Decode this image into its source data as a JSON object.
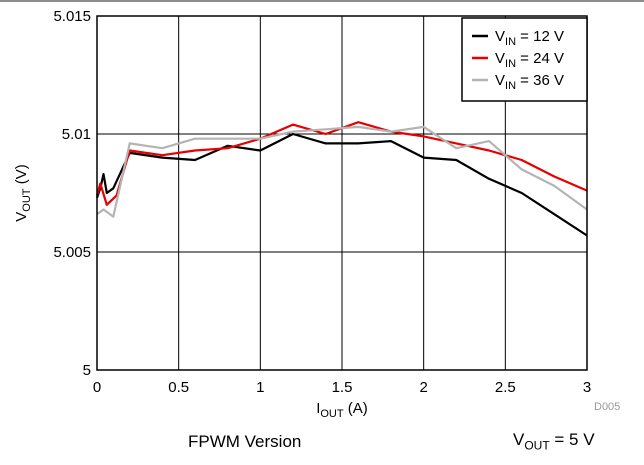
{
  "chart_data": {
    "type": "line",
    "xlabel": {
      "main": "I",
      "sub": "OUT",
      "tail": " (A)"
    },
    "ylabel": {
      "main": "V",
      "sub": "OUT",
      "tail": " (V)"
    },
    "xlim": [
      0,
      3
    ],
    "ylim": [
      5,
      5.015
    ],
    "x_ticks": [
      "0",
      "0.5",
      "1",
      "1.5",
      "2",
      "2.5",
      "3"
    ],
    "y_ticks": [
      "5",
      "5.005",
      "5.01",
      "5.015"
    ],
    "grid": true,
    "legend_position": "top-right",
    "series": [
      {
        "name": "VIN = 12 V",
        "label_main": "V",
        "label_sub": "IN",
        "label_tail": " = 12 V",
        "color": "#000000",
        "points": [
          [
            0,
            5.0073
          ],
          [
            0.02,
            5.0077
          ],
          [
            0.04,
            5.0083
          ],
          [
            0.06,
            5.0075
          ],
          [
            0.1,
            5.0077
          ],
          [
            0.2,
            5.0092
          ],
          [
            0.4,
            5.009
          ],
          [
            0.6,
            5.0089
          ],
          [
            0.8,
            5.0095
          ],
          [
            1.0,
            5.0093
          ],
          [
            1.2,
            5.01
          ],
          [
            1.4,
            5.0096
          ],
          [
            1.6,
            5.0096
          ],
          [
            1.8,
            5.0097
          ],
          [
            2.0,
            5.009
          ],
          [
            2.2,
            5.0089
          ],
          [
            2.4,
            5.0081
          ],
          [
            2.6,
            5.0075
          ],
          [
            2.8,
            5.0066
          ],
          [
            3.0,
            5.0057
          ]
        ]
      },
      {
        "name": "VIN = 24 V",
        "label_main": "V",
        "label_sub": "IN",
        "label_tail": " = 24 V",
        "color": "#e60000",
        "points": [
          [
            0,
            5.0074
          ],
          [
            0.02,
            5.0079
          ],
          [
            0.06,
            5.007
          ],
          [
            0.12,
            5.0074
          ],
          [
            0.2,
            5.0093
          ],
          [
            0.4,
            5.0091
          ],
          [
            0.6,
            5.0093
          ],
          [
            0.8,
            5.0094
          ],
          [
            1.0,
            5.0098
          ],
          [
            1.2,
            5.0104
          ],
          [
            1.4,
            5.01
          ],
          [
            1.6,
            5.0105
          ],
          [
            1.8,
            5.0101
          ],
          [
            2.0,
            5.0099
          ],
          [
            2.2,
            5.0096
          ],
          [
            2.4,
            5.0093
          ],
          [
            2.6,
            5.0089
          ],
          [
            2.8,
            5.0082
          ],
          [
            3.0,
            5.0076
          ]
        ]
      },
      {
        "name": "VIN = 36 V",
        "label_main": "V",
        "label_sub": "IN",
        "label_tail": " = 36 V",
        "color": "#b4b4b4",
        "points": [
          [
            0,
            5.0066
          ],
          [
            0.04,
            5.0068
          ],
          [
            0.1,
            5.0065
          ],
          [
            0.2,
            5.0096
          ],
          [
            0.4,
            5.0094
          ],
          [
            0.6,
            5.0098
          ],
          [
            0.8,
            5.0098
          ],
          [
            1.0,
            5.0098
          ],
          [
            1.2,
            5.0101
          ],
          [
            1.4,
            5.0102
          ],
          [
            1.6,
            5.0103
          ],
          [
            1.8,
            5.0101
          ],
          [
            2.0,
            5.0103
          ],
          [
            2.2,
            5.0094
          ],
          [
            2.4,
            5.0097
          ],
          [
            2.6,
            5.0085
          ],
          [
            2.8,
            5.0078
          ],
          [
            3.0,
            5.0068
          ]
        ]
      }
    ]
  },
  "figure_id": "D005",
  "caption": "FPWM Version",
  "note": {
    "main": "V",
    "sub": "OUT",
    "tail": " = 5 V"
  }
}
